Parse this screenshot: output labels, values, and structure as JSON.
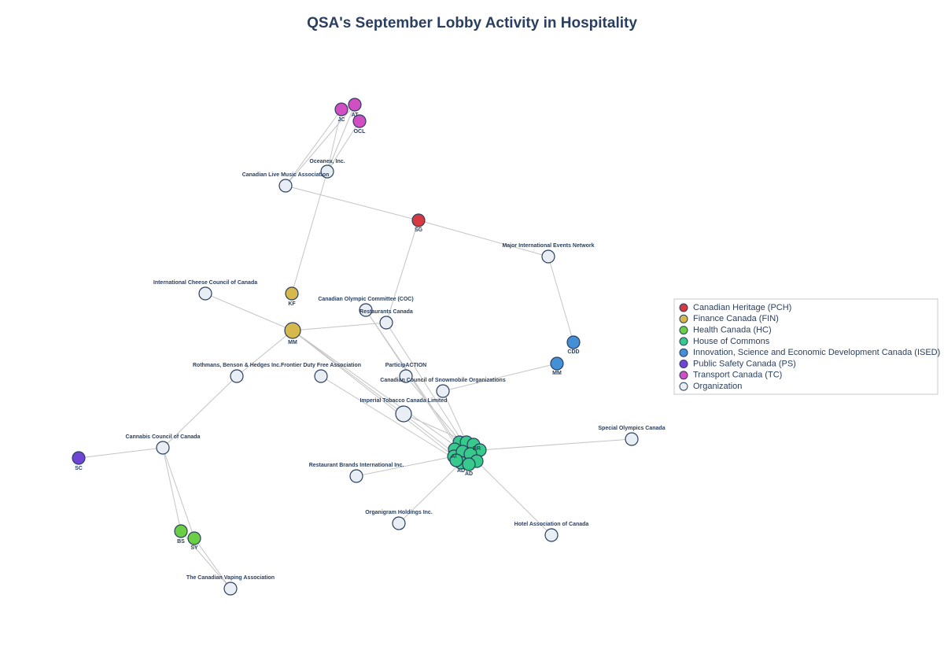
{
  "title": "QSA's September Lobby Activity in Hospitality",
  "legend": [
    {
      "label": "Canadian Heritage (PCH)",
      "color": "#d6393f"
    },
    {
      "label": "Finance Canada (FIN)",
      "color": "#d6b84c"
    },
    {
      "label": "Health Canada (HC)",
      "color": "#6bcf45"
    },
    {
      "label": "House of Commons",
      "color": "#38c98c"
    },
    {
      "label": "Innovation, Science and Economic Development Canada (ISED)",
      "color": "#4390d6"
    },
    {
      "label": "Public Safety Canada (PS)",
      "color": "#7045d6"
    },
    {
      "label": "Transport Canada (TC)",
      "color": "#d14fc2"
    },
    {
      "label": "Organization",
      "color": "#e9eef4"
    }
  ],
  "nodes": [
    {
      "label": "JC",
      "color": "#d14fc2"
    },
    {
      "label": "AT",
      "color": "#d14fc2"
    },
    {
      "label": "OCL",
      "color": "#d14fc2"
    },
    {
      "label": "Oceanex, Inc.",
      "color": "#e9eef4"
    },
    {
      "label": "Canadian Live Music Association",
      "color": "#e9eef4"
    },
    {
      "label": "SG",
      "color": "#d6393f"
    },
    {
      "label": "Major International Events Network",
      "color": "#e9eef4"
    },
    {
      "label": "International Cheese Council of Canada",
      "color": "#e9eef4"
    },
    {
      "label": "KF",
      "color": "#d6b84c"
    },
    {
      "label": "Canadian Olympic Committee (COC)",
      "color": "#e9eef4"
    },
    {
      "label": "Restaurants Canada",
      "color": "#e9eef4"
    },
    {
      "label": "MM",
      "color": "#d6b84c"
    },
    {
      "label": "CDD",
      "color": "#4390d6"
    },
    {
      "label": "MM",
      "color": "#4390d6"
    },
    {
      "label": "Rothmans, Benson & Hedges Inc.",
      "color": "#e9eef4"
    },
    {
      "label": "Frontier Duty Free Association",
      "color": "#e9eef4"
    },
    {
      "label": "ParticipACTION",
      "color": "#e9eef4"
    },
    {
      "label": "Canadian Council of Snowmobile Organizations",
      "color": "#e9eef4"
    },
    {
      "label": "Imperial Tobacco Canada Limited",
      "color": "#e9eef4"
    },
    {
      "label": "Special Olympics Canada",
      "color": "#e9eef4"
    },
    {
      "label": "Cannabis Council of Canada",
      "color": "#e9eef4"
    },
    {
      "label": "SC",
      "color": "#7045d6"
    },
    {
      "label": "Restaurant Brands International Inc.",
      "color": "#e9eef4"
    },
    {
      "label": "Organigram Holdings Inc.",
      "color": "#e9eef4"
    },
    {
      "label": "Hotel Association of Canada",
      "color": "#e9eef4"
    },
    {
      "label": "BS",
      "color": "#6bcf45"
    },
    {
      "label": "SY",
      "color": "#6bcf45"
    },
    {
      "label": "The Canadian Vaping Association",
      "color": "#e9eef4"
    },
    {
      "label": null,
      "color": "#38c98c"
    },
    {
      "label": null,
      "color": "#38c98c"
    },
    {
      "label": null,
      "color": "#38c98c"
    },
    {
      "label": null,
      "color": "#38c98c"
    },
    {
      "label": null,
      "color": "#38c98c"
    },
    {
      "label": "Al",
      "color": "#38c98c"
    },
    {
      "label": null,
      "color": "#38c98c"
    },
    {
      "label": null,
      "color": "#38c98c"
    },
    {
      "label": "BR",
      "color": "#38c98c"
    },
    {
      "label": "AD",
      "color": "#38c98c"
    },
    {
      "label": "AD",
      "color": "#38c98c"
    },
    {
      "label": null,
      "color": "#38c98c"
    }
  ]
}
